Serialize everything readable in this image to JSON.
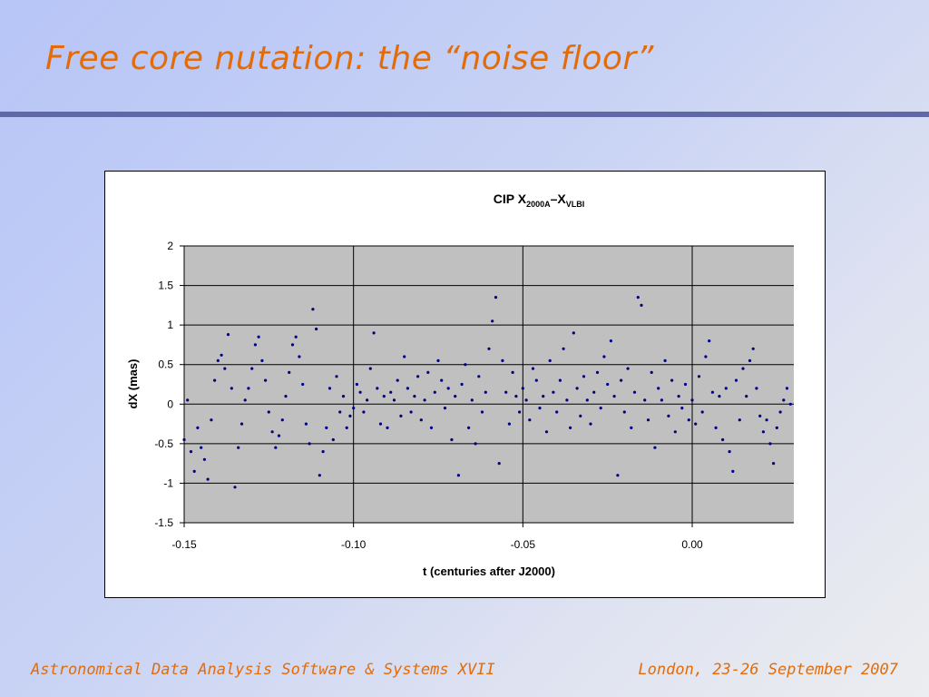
{
  "slide": {
    "title": "Free core nutation: the “noise floor”",
    "footer_left": "Astronomical Data Analysis Software & Systems XVII",
    "footer_right": "London, 23-26 September 2007"
  },
  "colors": {
    "title": "#e36c09",
    "rule": "#6068a8",
    "plot_bg": "#c0c0c0",
    "points": "#000080"
  },
  "chart_data": {
    "type": "scatter",
    "title_main": "CIP X",
    "title_sub1": "2000A",
    "title_mid": "–X",
    "title_sub2": "VLBI",
    "xlabel": "t (centuries after J2000)",
    "ylabel": "dX (mas)",
    "xlim": [
      -0.15,
      0.03
    ],
    "ylim": [
      -1.5,
      2.0
    ],
    "xticks": [
      -0.15,
      -0.1,
      -0.05,
      0.0
    ],
    "xtick_labels": [
      "-0.15",
      "-0.10",
      "-0.05",
      "0.00"
    ],
    "yticks": [
      -1.5,
      -1,
      -0.5,
      0,
      0.5,
      1,
      1.5,
      2
    ],
    "ytick_labels": [
      "-1.5",
      "-1",
      "-0.5",
      "0",
      "0.5",
      "1",
      "1.5",
      "2"
    ],
    "grid": true,
    "legend": "none",
    "series": [
      {
        "points": [
          [
            -0.15,
            -0.45
          ],
          [
            -0.149,
            0.05
          ],
          [
            -0.148,
            -0.6
          ],
          [
            -0.147,
            -0.85
          ],
          [
            -0.146,
            -0.3
          ],
          [
            -0.145,
            -0.55
          ],
          [
            -0.144,
            -0.7
          ],
          [
            -0.143,
            -0.95
          ],
          [
            -0.142,
            -0.2
          ],
          [
            -0.141,
            0.3
          ],
          [
            -0.14,
            0.55
          ],
          [
            -0.139,
            0.62
          ],
          [
            -0.138,
            0.45
          ],
          [
            -0.137,
            0.88
          ],
          [
            -0.136,
            0.2
          ],
          [
            -0.135,
            -1.05
          ],
          [
            -0.134,
            -0.55
          ],
          [
            -0.133,
            -0.25
          ],
          [
            -0.132,
            0.05
          ],
          [
            -0.131,
            0.2
          ],
          [
            -0.13,
            0.45
          ],
          [
            -0.129,
            0.75
          ],
          [
            -0.128,
            0.85
          ],
          [
            -0.127,
            0.55
          ],
          [
            -0.126,
            0.3
          ],
          [
            -0.125,
            -0.1
          ],
          [
            -0.124,
            -0.35
          ],
          [
            -0.123,
            -0.55
          ],
          [
            -0.122,
            -0.4
          ],
          [
            -0.121,
            -0.2
          ],
          [
            -0.12,
            0.1
          ],
          [
            -0.119,
            0.4
          ],
          [
            -0.118,
            0.75
          ],
          [
            -0.117,
            0.85
          ],
          [
            -0.116,
            0.6
          ],
          [
            -0.115,
            0.25
          ],
          [
            -0.114,
            -0.25
          ],
          [
            -0.113,
            -0.5
          ],
          [
            -0.112,
            1.2
          ],
          [
            -0.111,
            0.95
          ],
          [
            -0.11,
            -0.9
          ],
          [
            -0.109,
            -0.6
          ],
          [
            -0.108,
            -0.3
          ],
          [
            -0.107,
            0.2
          ],
          [
            -0.106,
            -0.45
          ],
          [
            -0.105,
            0.35
          ],
          [
            -0.104,
            -0.1
          ],
          [
            -0.103,
            0.1
          ],
          [
            -0.102,
            -0.3
          ],
          [
            -0.101,
            -0.15
          ],
          [
            -0.1,
            -0.05
          ],
          [
            -0.099,
            0.25
          ],
          [
            -0.098,
            0.15
          ],
          [
            -0.097,
            -0.1
          ],
          [
            -0.096,
            0.05
          ],
          [
            -0.095,
            0.45
          ],
          [
            -0.094,
            0.9
          ],
          [
            -0.093,
            0.2
          ],
          [
            -0.092,
            -0.25
          ],
          [
            -0.091,
            0.1
          ],
          [
            -0.09,
            -0.3
          ],
          [
            -0.089,
            0.15
          ],
          [
            -0.088,
            0.05
          ],
          [
            -0.087,
            0.3
          ],
          [
            -0.086,
            -0.15
          ],
          [
            -0.085,
            0.6
          ],
          [
            -0.084,
            0.2
          ],
          [
            -0.083,
            -0.1
          ],
          [
            -0.082,
            0.1
          ],
          [
            -0.081,
            0.35
          ],
          [
            -0.08,
            -0.2
          ],
          [
            -0.079,
            0.05
          ],
          [
            -0.078,
            0.4
          ],
          [
            -0.077,
            -0.3
          ],
          [
            -0.076,
            0.15
          ],
          [
            -0.075,
            0.55
          ],
          [
            -0.074,
            0.3
          ],
          [
            -0.073,
            -0.05
          ],
          [
            -0.072,
            0.2
          ],
          [
            -0.071,
            -0.45
          ],
          [
            -0.07,
            0.1
          ],
          [
            -0.069,
            -0.9
          ],
          [
            -0.068,
            0.25
          ],
          [
            -0.067,
            0.5
          ],
          [
            -0.066,
            -0.3
          ],
          [
            -0.065,
            0.05
          ],
          [
            -0.064,
            -0.5
          ],
          [
            -0.063,
            0.35
          ],
          [
            -0.062,
            -0.1
          ],
          [
            -0.061,
            0.15
          ],
          [
            -0.06,
            0.7
          ],
          [
            -0.059,
            1.05
          ],
          [
            -0.058,
            1.35
          ],
          [
            -0.057,
            -0.75
          ],
          [
            -0.056,
            0.55
          ],
          [
            -0.055,
            0.15
          ],
          [
            -0.054,
            -0.25
          ],
          [
            -0.053,
            0.4
          ],
          [
            -0.052,
            0.1
          ],
          [
            -0.051,
            -0.1
          ],
          [
            -0.05,
            0.2
          ],
          [
            -0.049,
            0.05
          ],
          [
            -0.048,
            -0.2
          ],
          [
            -0.047,
            0.45
          ],
          [
            -0.046,
            0.3
          ],
          [
            -0.045,
            -0.05
          ],
          [
            -0.044,
            0.1
          ],
          [
            -0.043,
            -0.35
          ],
          [
            -0.042,
            0.55
          ],
          [
            -0.041,
            0.15
          ],
          [
            -0.04,
            -0.1
          ],
          [
            -0.039,
            0.3
          ],
          [
            -0.038,
            0.7
          ],
          [
            -0.037,
            0.05
          ],
          [
            -0.036,
            -0.3
          ],
          [
            -0.035,
            0.9
          ],
          [
            -0.034,
            0.2
          ],
          [
            -0.033,
            -0.15
          ],
          [
            -0.032,
            0.35
          ],
          [
            -0.031,
            0.05
          ],
          [
            -0.03,
            -0.25
          ],
          [
            -0.029,
            0.15
          ],
          [
            -0.028,
            0.4
          ],
          [
            -0.027,
            -0.05
          ],
          [
            -0.026,
            0.6
          ],
          [
            -0.025,
            0.25
          ],
          [
            -0.024,
            0.8
          ],
          [
            -0.023,
            0.1
          ],
          [
            -0.022,
            -0.9
          ],
          [
            -0.021,
            0.3
          ],
          [
            -0.02,
            -0.1
          ],
          [
            -0.019,
            0.45
          ],
          [
            -0.018,
            -0.3
          ],
          [
            -0.017,
            0.15
          ],
          [
            -0.016,
            1.35
          ],
          [
            -0.015,
            1.25
          ],
          [
            -0.014,
            0.05
          ],
          [
            -0.013,
            -0.2
          ],
          [
            -0.012,
            0.4
          ],
          [
            -0.011,
            -0.55
          ],
          [
            -0.01,
            0.2
          ],
          [
            -0.009,
            0.05
          ],
          [
            -0.008,
            0.55
          ],
          [
            -0.007,
            -0.15
          ],
          [
            -0.006,
            0.3
          ],
          [
            -0.005,
            -0.35
          ],
          [
            -0.004,
            0.1
          ],
          [
            -0.003,
            -0.05
          ],
          [
            -0.002,
            0.25
          ],
          [
            -0.001,
            -0.2
          ],
          [
            0.0,
            0.05
          ],
          [
            0.001,
            -0.25
          ],
          [
            0.002,
            0.35
          ],
          [
            0.003,
            -0.1
          ],
          [
            0.004,
            0.6
          ],
          [
            0.005,
            0.8
          ],
          [
            0.006,
            0.15
          ],
          [
            0.007,
            -0.3
          ],
          [
            0.008,
            0.1
          ],
          [
            0.009,
            -0.45
          ],
          [
            0.01,
            0.2
          ],
          [
            0.011,
            -0.6
          ],
          [
            0.012,
            -0.85
          ],
          [
            0.013,
            0.3
          ],
          [
            0.014,
            -0.2
          ],
          [
            0.015,
            0.45
          ],
          [
            0.016,
            0.1
          ],
          [
            0.017,
            0.55
          ],
          [
            0.018,
            0.7
          ],
          [
            0.019,
            0.2
          ],
          [
            0.02,
            -0.15
          ],
          [
            0.021,
            -0.35
          ],
          [
            0.022,
            -0.2
          ],
          [
            0.023,
            -0.5
          ],
          [
            0.024,
            -0.75
          ],
          [
            0.025,
            -0.3
          ],
          [
            0.026,
            -0.1
          ],
          [
            0.027,
            0.05
          ],
          [
            0.028,
            0.2
          ],
          [
            0.029,
            0.0
          ]
        ]
      }
    ]
  }
}
